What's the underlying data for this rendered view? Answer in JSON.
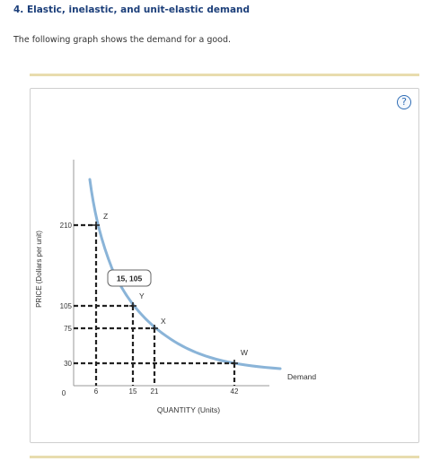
{
  "header": {
    "title": "4. Elastic, inelastic, and unit-elastic demand",
    "intro": "The following graph shows the demand for a good."
  },
  "help": {
    "icon": "help-icon",
    "label": "?"
  },
  "chart_data": {
    "type": "line",
    "xlabel": "QUANTITY (Units)",
    "ylabel": "PRICE (Dollars per unit)",
    "origin_label": "0",
    "x_ticks": [
      "6",
      "15",
      "21",
      "42"
    ],
    "y_ticks": [
      "210",
      "105",
      "75",
      "30"
    ],
    "series": [
      {
        "name": "Demand",
        "color": "#8ab4d8"
      }
    ],
    "points": [
      {
        "label": "Z",
        "x": 6,
        "y": 210
      },
      {
        "label": "Y",
        "x": 15,
        "y": 105
      },
      {
        "label": "X",
        "x": 21,
        "y": 75
      },
      {
        "label": "W",
        "x": 42,
        "y": 30
      }
    ],
    "tooltip": "15, 105",
    "curve_color": "#8ab4d8",
    "guide_color": "#222222"
  }
}
